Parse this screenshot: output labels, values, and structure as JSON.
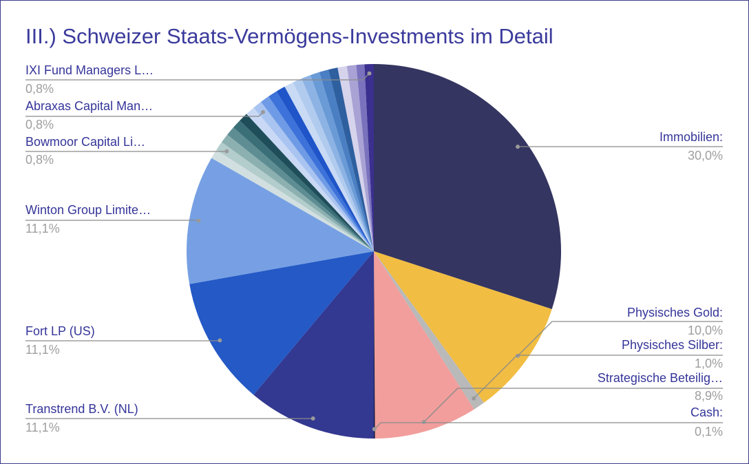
{
  "chart_data": {
    "type": "pie",
    "title": "III.) Schweizer Staats-Vermögens-Investments im Detail",
    "categories": [
      "Immobilien:",
      "Physisches Gold:",
      "Physisches Silber:",
      "Strategische Beteilig…",
      "Cash:",
      "Transtrend B.V. (NL)",
      "Fort LP (US)",
      "Winton Group Limite…",
      null,
      "Bowmoor Capital Li…",
      null,
      null,
      null,
      null,
      null,
      "Abraxas Capital Man…",
      null,
      null,
      null,
      null,
      null,
      null,
      null,
      null,
      null,
      null,
      null,
      null,
      "IXI Fund Managers L…"
    ],
    "values": [
      30,
      10,
      1,
      8.9,
      0.1,
      11.1,
      11.1,
      11.1,
      0.8,
      0.8,
      0.8,
      0.8,
      0.8,
      0.8,
      0.8,
      0.8,
      0.8,
      0.8,
      0.8,
      0.8,
      0.8,
      0.8,
      0.8,
      0.8,
      0.8,
      0.8,
      0.8,
      0.7,
      0.8
    ],
    "value_labels": [
      "30,0%",
      "10,0%",
      "1,0%",
      "8,9%",
      "0,1%",
      "11,1%",
      "11,1%",
      "11,1%",
      null,
      "0,8%",
      null,
      null,
      null,
      null,
      null,
      "0,8%",
      null,
      null,
      null,
      null,
      null,
      null,
      null,
      null,
      null,
      null,
      null,
      null,
      "0,8%"
    ],
    "colors": [
      "#343560",
      "#f1bd42",
      "#b9b9b9",
      "#f19e9c",
      "#1a1a40",
      "#333891",
      "#2459c6",
      "#76a0e3",
      "#d2dfe0",
      "#b3cccc",
      "#8cb0b0",
      "#5e8d94",
      "#3b6f78",
      "#1f4e5a",
      "#c9d9f5",
      "#a9c4f0",
      "#6f9be6",
      "#3c72d9",
      "#1f55c8",
      "#c9daf5",
      "#b0cbee",
      "#8db3e4",
      "#6a9bd6",
      "#4a7fc3",
      "#2e5f9f",
      "#d6d3ec",
      "#a9a3d5",
      "#7a72bd",
      "#3b2f8f"
    ]
  }
}
